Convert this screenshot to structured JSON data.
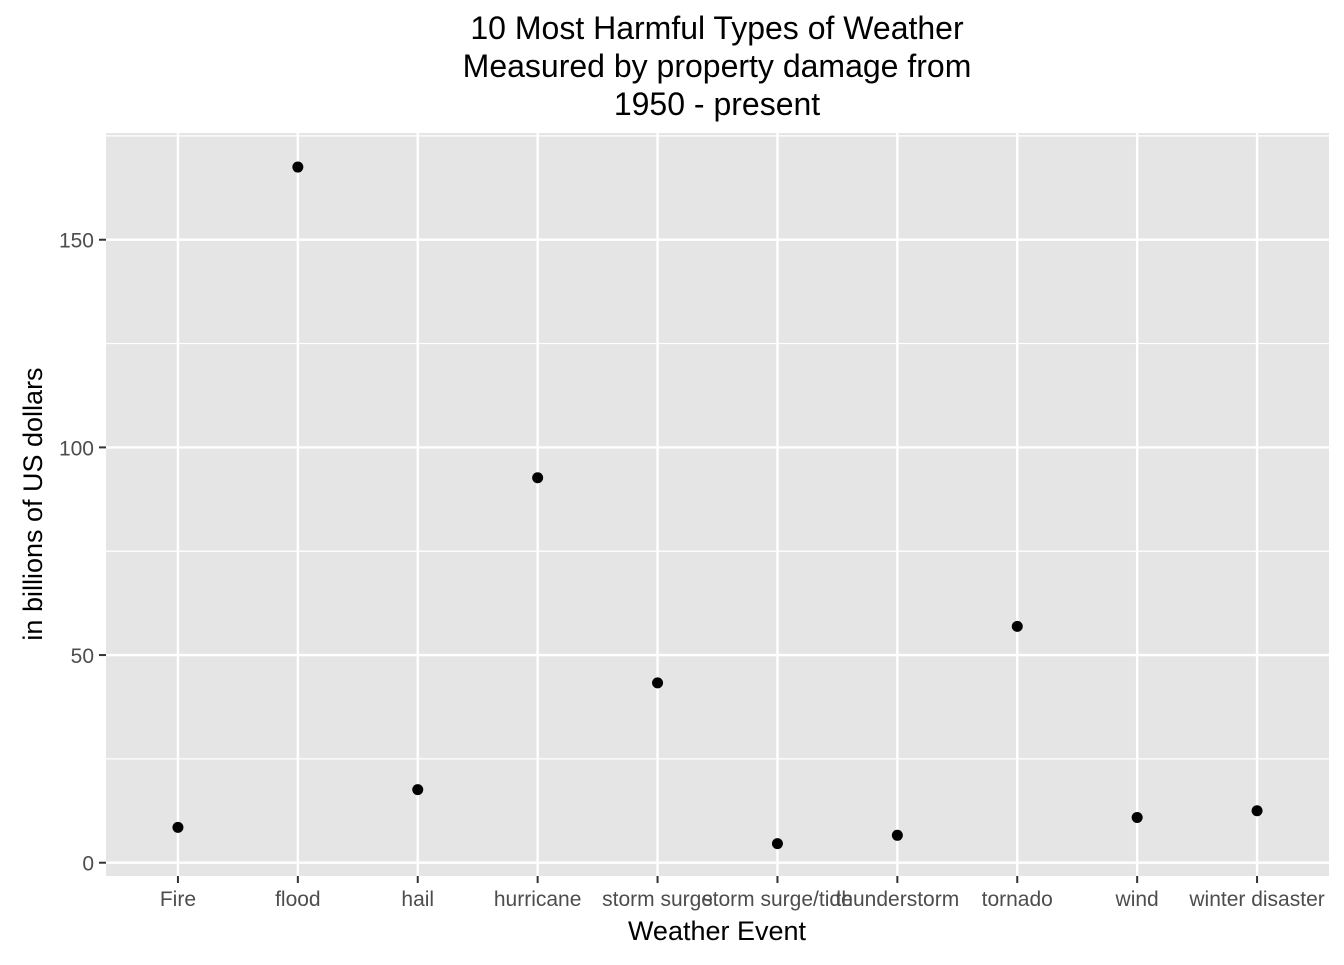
{
  "chart_data": {
    "type": "scatter",
    "title_lines": [
      "10 Most Harmful Types of Weather",
      "Measured by property damage from",
      "1950 - present"
    ],
    "xlabel": "Weather Event",
    "ylabel": "in billions of US dollars",
    "categories": [
      "Fire",
      "flood",
      "hail",
      "hurricane",
      "storm surge",
      "storm surge/tide",
      "thunderstorm",
      "tornado",
      "wind",
      "winter disaster"
    ],
    "values": [
      8.5,
      167.5,
      17.6,
      92.7,
      43.3,
      4.6,
      6.6,
      56.9,
      10.9,
      12.5
    ],
    "yticks": [
      0,
      50,
      100,
      150
    ],
    "ylim": [
      -3.2,
      175.7
    ],
    "grid": true,
    "colors": {
      "panel": "#e5e5e5",
      "grid": "#ffffff",
      "point": "#000000",
      "tick_text": "#4d4d4d",
      "title": "#000000"
    }
  }
}
